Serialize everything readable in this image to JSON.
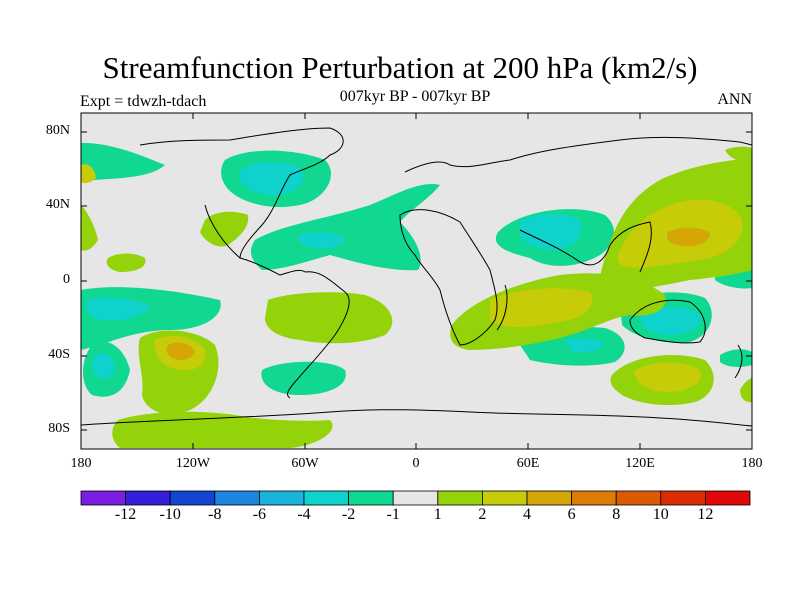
{
  "header": {
    "title": "Streamfunction Perturbation at 200 hPa (km2/s)",
    "subtitle": "007kyr BP - 007kyr BP",
    "left_label": "Expt = tdwzh-tdach",
    "right_label": "ANN"
  },
  "axes": {
    "y_ticks": [
      "80N",
      "40N",
      "0",
      "40S",
      "80S"
    ],
    "x_ticks": [
      "180",
      "120W",
      "60W",
      "0",
      "60E",
      "120E",
      "180"
    ]
  },
  "colorbar": {
    "colors": [
      "#7a1fe0",
      "#3320d8",
      "#1346d0",
      "#1b86e0",
      "#1ab3dc",
      "#10d2cc",
      "#10d890",
      "#e6e6e6",
      "#94d20a",
      "#c6cc08",
      "#d6a606",
      "#dc7c06",
      "#dc5a06",
      "#dc2c06",
      "#e00808"
    ],
    "labels": [
      "-12",
      "-10",
      "-8",
      "-6",
      "-4",
      "-2",
      "-1",
      "1",
      "2",
      "4",
      "6",
      "8",
      "10",
      "12"
    ]
  },
  "chart_data": {
    "type": "heatmap",
    "title": "Streamfunction Perturbation at 200 hPa (km2/s)",
    "subtitle": "007kyr BP - 007kyr BP",
    "season": "ANN",
    "experiment": "tdwzh-tdach",
    "x_range": [
      -180,
      180
    ],
    "y_range": [
      -90,
      90
    ],
    "levels": [
      -12,
      -10,
      -8,
      -6,
      -4,
      -2,
      -1,
      1,
      2,
      4,
      6,
      8,
      10,
      12
    ]
  }
}
